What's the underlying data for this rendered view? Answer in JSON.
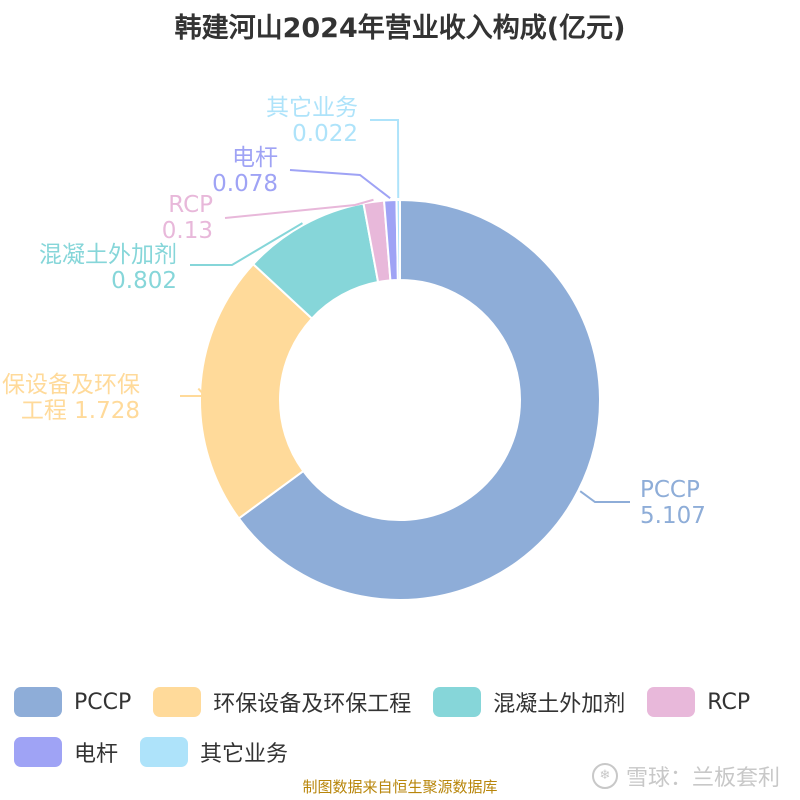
{
  "chart_data": {
    "type": "pie",
    "donut": true,
    "title": "韩建河山2024年营业收入构成(亿元)",
    "unit": "亿元",
    "slices": [
      {
        "name": "PCCP",
        "value": 5.107,
        "color": "#8eadd8",
        "label_lines": [
          "PCCP",
          "5.107"
        ]
      },
      {
        "name": "环保设备及环保工程",
        "value": 1.728,
        "color": "#ffda9a",
        "label_lines": [
          "保设备及环保",
          "工程 1.728"
        ]
      },
      {
        "name": "混凝土外加剂",
        "value": 0.802,
        "color": "#86d6d9",
        "label_lines": [
          "混凝土外加剂",
          "0.802"
        ]
      },
      {
        "name": "RCP",
        "value": 0.13,
        "color": "#e8b8da",
        "label_lines": [
          "RCP",
          "0.13"
        ]
      },
      {
        "name": "电杆",
        "value": 0.078,
        "color": "#9fa3f5",
        "label_lines": [
          "电杆",
          "0.078"
        ]
      },
      {
        "name": "其它业务",
        "value": 0.022,
        "color": "#aee3fa",
        "label_lines": [
          "其它业务",
          "0.022"
        ]
      }
    ],
    "legend_position": "bottom"
  },
  "footer": {
    "source": "制图数据来自恒生聚源数据库",
    "watermark": "雪球：兰板套利"
  }
}
